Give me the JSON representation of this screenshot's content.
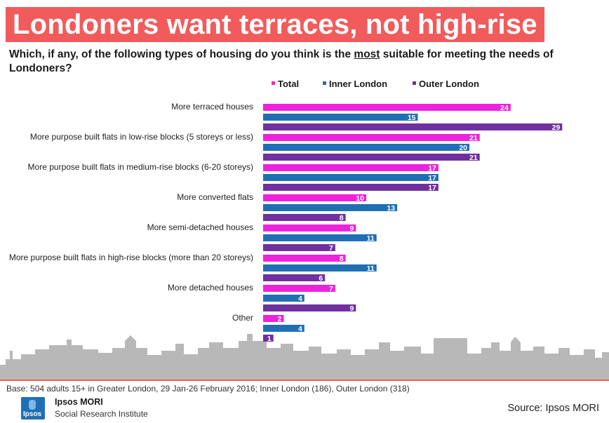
{
  "title": "Londoners want terraces, not high-rise",
  "subtitle_pre": "Which, if any, of the following types of housing do you think is the ",
  "subtitle_emph": "most",
  "subtitle_post": " suitable for meeting the needs of Londoners?",
  "colors": {
    "total": "#ee22dd",
    "inner": "#1f6fb5",
    "outer": "#7030a0",
    "skyline": "#b8b8b8",
    "title_bg": "#f15b5b"
  },
  "chart_data": {
    "type": "bar",
    "orientation": "horizontal",
    "categories": [
      "More terraced houses",
      "More purpose built flats in low-rise blocks (5 storeys or less)",
      "More purpose built flats in medium-rise blocks (6-20 storeys)",
      "More converted flats",
      "More semi-detached houses",
      "More purpose built flats in high-rise blocks (more than 20 storeys)",
      "More detached houses",
      "Other"
    ],
    "series": [
      {
        "name": "Total",
        "color": "#ee22dd",
        "values": [
          24,
          21,
          17,
          10,
          9,
          8,
          7,
          2
        ]
      },
      {
        "name": "Inner London",
        "color": "#1f6fb5",
        "values": [
          15,
          20,
          17,
          13,
          11,
          11,
          4,
          4
        ]
      },
      {
        "name": "Outer London",
        "color": "#7030a0",
        "values": [
          29,
          21,
          17,
          8,
          7,
          6,
          9,
          1
        ]
      }
    ],
    "legend_position": "top",
    "grid": false
  },
  "footer": {
    "base_note": "Base: 504 adults 15+ in Greater London, 29 Jan-26 February 2016; Inner London (186), Outer London (318)",
    "brand": "Ipsos MORI",
    "brand_sub": "Social Research Institute",
    "logo_text": "Ipsos",
    "source": "Source: Ipsos MORI"
  }
}
